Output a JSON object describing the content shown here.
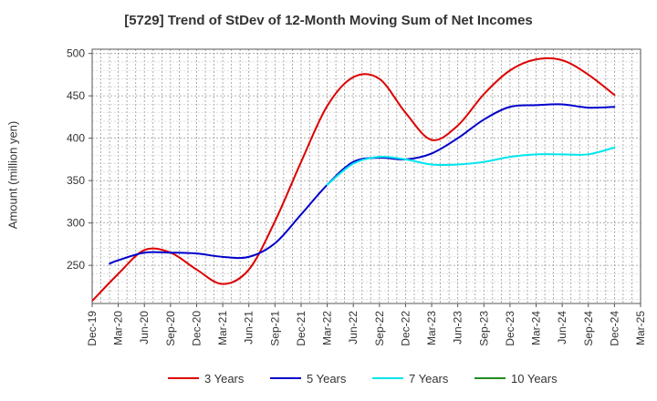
{
  "chart_data": {
    "type": "line",
    "title": "[5729]  Trend of StDev of 12-Month Moving Sum of Net Incomes",
    "ylabel": "Amount (million yen)",
    "xlabel": "",
    "ylim": [
      205,
      505
    ],
    "yticks": [
      250,
      300,
      350,
      400,
      450,
      500
    ],
    "x_ticks": [
      "Dec-19",
      "Mar-20",
      "Jun-20",
      "Sep-20",
      "Dec-20",
      "Mar-21",
      "Jun-21",
      "Sep-21",
      "Dec-21",
      "Mar-22",
      "Jun-22",
      "Sep-22",
      "Dec-22",
      "Mar-23",
      "Jun-23",
      "Sep-23",
      "Dec-23",
      "Mar-24",
      "Jun-24",
      "Sep-24",
      "Dec-24",
      "Mar-25"
    ],
    "grid": true,
    "legend_position": "bottom",
    "series": [
      {
        "name": "3 Years",
        "color": "#dd0000",
        "points": [
          [
            0,
            208
          ],
          [
            1,
            240
          ],
          [
            2,
            268
          ],
          [
            3,
            265
          ],
          [
            4,
            245
          ],
          [
            5,
            228
          ],
          [
            6,
            245
          ],
          [
            7,
            302
          ],
          [
            8,
            372
          ],
          [
            9,
            438
          ],
          [
            10,
            472
          ],
          [
            11,
            470
          ],
          [
            12,
            430
          ],
          [
            13,
            398
          ],
          [
            14,
            415
          ],
          [
            15,
            452
          ],
          [
            16,
            480
          ],
          [
            17,
            493
          ],
          [
            18,
            492
          ],
          [
            19,
            475
          ],
          [
            20,
            451
          ]
        ]
      },
      {
        "name": "5 Years",
        "color": "#0000cc",
        "points": [
          [
            0.67,
            252
          ],
          [
            1,
            256
          ],
          [
            2,
            265
          ],
          [
            3,
            265
          ],
          [
            4,
            264
          ],
          [
            5,
            260
          ],
          [
            6,
            260
          ],
          [
            7,
            276
          ],
          [
            8,
            310
          ],
          [
            9,
            345
          ],
          [
            10,
            372
          ],
          [
            11,
            377
          ],
          [
            12,
            375
          ],
          [
            13,
            382
          ],
          [
            14,
            400
          ],
          [
            15,
            422
          ],
          [
            16,
            437
          ],
          [
            17,
            439
          ],
          [
            18,
            440
          ],
          [
            19,
            436
          ],
          [
            20,
            437
          ]
        ]
      },
      {
        "name": "7 Years",
        "color": "#00e5ee",
        "points": [
          [
            9,
            345
          ],
          [
            10,
            370
          ],
          [
            11,
            378
          ],
          [
            12,
            375
          ],
          [
            13,
            369
          ],
          [
            14,
            369
          ],
          [
            15,
            372
          ],
          [
            16,
            378
          ],
          [
            17,
            381
          ],
          [
            18,
            381
          ],
          [
            19,
            381
          ],
          [
            20,
            389
          ]
        ]
      },
      {
        "name": "10 Years",
        "color": "#228b22",
        "points": []
      }
    ]
  }
}
